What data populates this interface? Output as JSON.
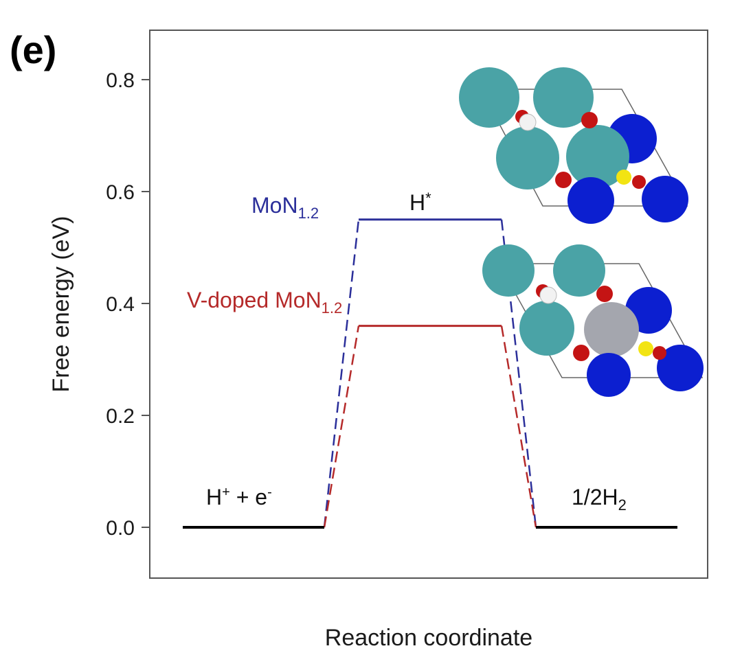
{
  "panel_label": "(e)",
  "chart_data": {
    "type": "line",
    "xlabel": "Reaction coordinate",
    "ylabel": "Free energy (eV)",
    "ylim": [
      -0.09,
      0.9
    ],
    "yticks": [
      "0.0",
      "0.2",
      "0.4",
      "0.6",
      "0.8"
    ],
    "grid": false,
    "states": [
      {
        "label_base": "H",
        "label_sup1": "+",
        "label_mid": " + e",
        "label_sup2": "-",
        "value": 0.0
      },
      {
        "label_base": "H",
        "label_sup1": "*",
        "value": null
      },
      {
        "label_base": "1/2H",
        "label_sub": "2",
        "value": 0.0
      }
    ],
    "series": [
      {
        "name_base": "MoN",
        "name_sub": "1.2",
        "color": "#2b2f9a",
        "values": [
          0.0,
          0.55,
          0.0
        ]
      },
      {
        "name_base": "V-doped MoN",
        "name_sub": "1.2",
        "color": "#b52a2a",
        "values": [
          0.0,
          0.36,
          0.0
        ]
      }
    ],
    "baseline_color": "#000000"
  }
}
